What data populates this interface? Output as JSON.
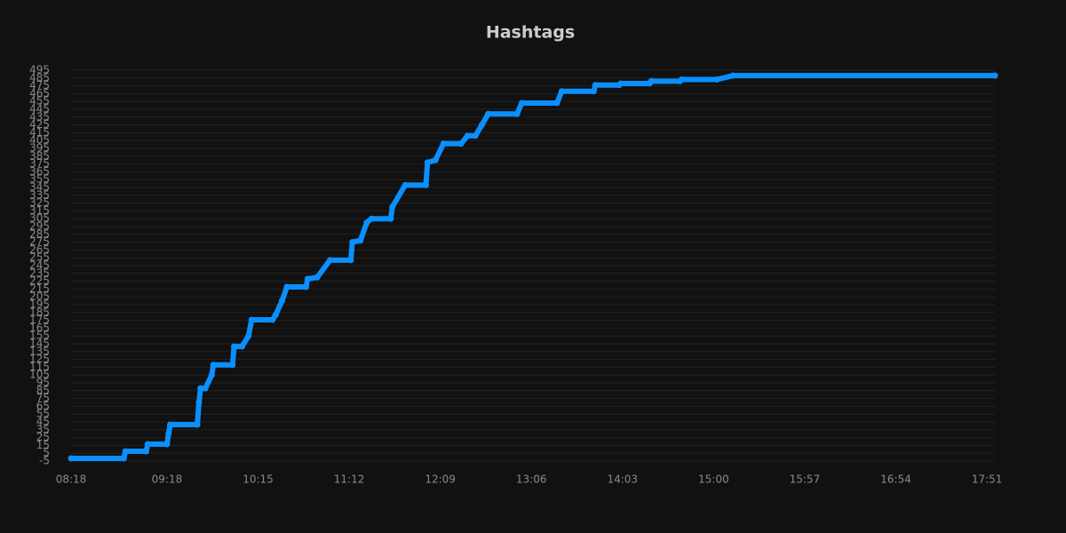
{
  "chart_data": {
    "type": "line",
    "title": "Hashtags",
    "x": [
      "08:18",
      "08:51",
      "08:52",
      "09:05",
      "09:06",
      "09:18",
      "09:19",
      "09:20",
      "09:37",
      "09:38",
      "09:39",
      "09:42",
      "09:46",
      "09:47",
      "09:59",
      "10:00",
      "10:05",
      "10:09",
      "10:11",
      "10:24",
      "10:26",
      "10:30",
      "10:33",
      "10:45",
      "10:46",
      "10:52",
      "11:00",
      "11:13",
      "11:14",
      "11:19",
      "11:23",
      "11:26",
      "11:38",
      "11:39",
      "11:47",
      "12:00",
      "12:01",
      "12:06",
      "12:11",
      "12:22",
      "12:26",
      "12:31",
      "12:35",
      "12:39",
      "12:57",
      "13:00",
      "13:22",
      "13:25",
      "13:45",
      "13:46",
      "14:01",
      "14:02",
      "14:20",
      "14:21",
      "14:39",
      "14:40",
      "15:02",
      "15:12",
      "17:56"
    ],
    "series": [
      {
        "name": "Hashtags",
        "color": "#0a8fff",
        "values": [
          -1.6,
          -1.6,
          7.5,
          7.5,
          16.6,
          16.6,
          30,
          41.6,
          41.6,
          70,
          88,
          88,
          105,
          118,
          118,
          141.6,
          141.6,
          155,
          175.7,
          175.7,
          182,
          200,
          217.7,
          217.7,
          228,
          230,
          252,
          252,
          275,
          277,
          300,
          305,
          305,
          320,
          348,
          348,
          377,
          380,
          401,
          401,
          411,
          411,
          425,
          439,
          439,
          453,
          453,
          468,
          468,
          476,
          476,
          478,
          478,
          481,
          481,
          483,
          483,
          488,
          488
        ]
      }
    ],
    "xlim": [
      "08:18",
      "17:56"
    ],
    "xticks": [
      "08:18",
      "09:18",
      "10:15",
      "11:12",
      "12:09",
      "13:06",
      "14:03",
      "15:00",
      "15:57",
      "16:54",
      "17:51"
    ],
    "ylim": [
      -5,
      495
    ],
    "yticks": [
      -5,
      5,
      15,
      25,
      35,
      45,
      55,
      65,
      75,
      85,
      95,
      105,
      115,
      125,
      135,
      145,
      155,
      165,
      175,
      185,
      195,
      205,
      215,
      225,
      235,
      245,
      255,
      265,
      275,
      285,
      295,
      305,
      315,
      325,
      335,
      345,
      355,
      365,
      375,
      385,
      395,
      405,
      415,
      425,
      435,
      445,
      455,
      465,
      475,
      485,
      495
    ],
    "grid": true
  }
}
